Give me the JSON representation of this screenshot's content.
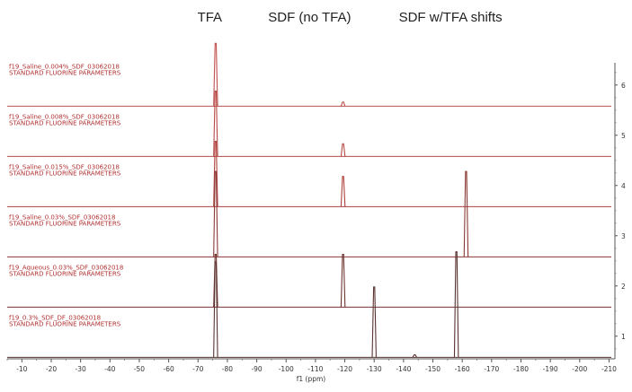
{
  "chart_data": {
    "type": "line",
    "title": "",
    "header_labels": [
      "TFA",
      "SDF (no TFA)",
      "SDF w/TFA shifts"
    ],
    "header_label_ppm": [
      -74,
      -108,
      -156
    ],
    "xlabel": "f1 (ppm)",
    "x_ticks": [
      -10,
      -20,
      -30,
      -40,
      -50,
      -60,
      -70,
      -80,
      -90,
      -100,
      -110,
      -120,
      -130,
      -140,
      -150,
      -160,
      -170,
      -180,
      -190,
      -200,
      -210
    ],
    "xlim": [
      -5,
      -212
    ],
    "y_ticks": [
      1,
      2,
      3,
      4,
      5,
      6
    ],
    "ylim": [
      0.55,
      6.55
    ],
    "grid": false,
    "series": [
      {
        "name": "f19_Saline_0.004%_SDF_03062018",
        "subtitle": "STANDARD FLUORINE PARAMETERS",
        "baseline": 5.58,
        "peaks": [
          {
            "ppm": -76.0,
            "height": 1.25
          },
          {
            "ppm": -119.4,
            "height": 0.08
          }
        ]
      },
      {
        "name": "f19_Saline_0.008%_SDF_03062018",
        "subtitle": "STANDARD FLUORINE PARAMETERS",
        "baseline": 4.58,
        "peaks": [
          {
            "ppm": -76.0,
            "height": 1.3
          },
          {
            "ppm": -119.4,
            "height": 0.25
          }
        ]
      },
      {
        "name": "f19_Saline_0.015%_SDF_03062018",
        "subtitle": "STANDARD FLUORINE PARAMETERS",
        "baseline": 3.58,
        "peaks": [
          {
            "ppm": -76.0,
            "height": 1.3
          },
          {
            "ppm": -119.4,
            "height": 0.6
          }
        ]
      },
      {
        "name": "f19_Saline_0.03%_SDF_03062018",
        "subtitle": "STANDARD FLUORINE PARAMETERS",
        "baseline": 2.58,
        "peaks": [
          {
            "ppm": -76.0,
            "height": 1.7
          },
          {
            "ppm": -161.3,
            "height": 1.7
          }
        ]
      },
      {
        "name": "f19_Aqueous_0.03%_SDF_03062018",
        "subtitle": "STANDARD FLUORINE PARAMETERS",
        "baseline": 1.58,
        "peaks": [
          {
            "ppm": -76.0,
            "height": 1.05
          },
          {
            "ppm": -119.4,
            "height": 1.05
          }
        ]
      },
      {
        "name": "f19_0.3%_SDF_DF_03062018",
        "subtitle": "STANDARD FLUORINE PARAMETERS",
        "baseline": 0.58,
        "peaks": [
          {
            "ppm": -76.0,
            "height": 1.9
          },
          {
            "ppm": -130.0,
            "height": 1.4
          },
          {
            "ppm": -158.0,
            "height": 2.1
          },
          {
            "ppm": -143.8,
            "height": 0.05
          }
        ]
      }
    ]
  }
}
